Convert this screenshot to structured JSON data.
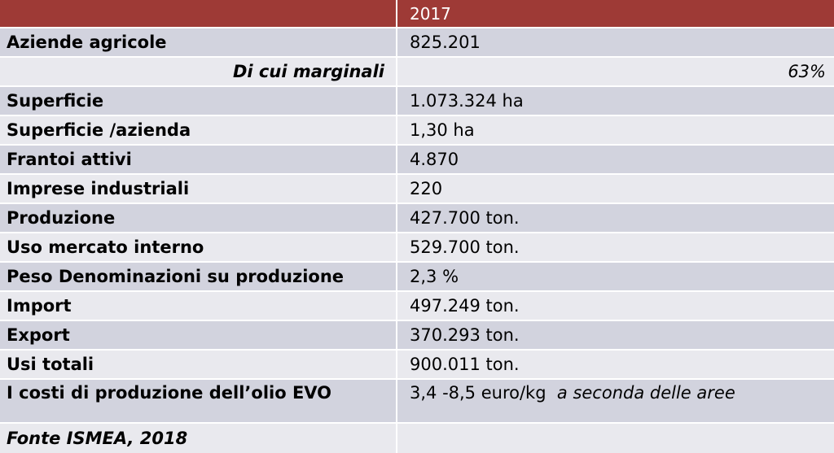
{
  "header": {
    "label": "",
    "year": "2017"
  },
  "rows": [
    {
      "label": "Aziende agricole",
      "value": "825.201"
    },
    {
      "label": "Di cui marginali",
      "value": "63%"
    },
    {
      "label": "Superficie",
      "value": "1.073.324 ha"
    },
    {
      "label": "Superficie /azienda",
      "value": "1,30 ha"
    },
    {
      "label": "Frantoi attivi",
      "value": "4.870"
    },
    {
      "label": "Imprese industriali",
      "value": "220"
    },
    {
      "label": "Produzione",
      "value": "427.700 ton."
    },
    {
      "label": "Uso mercato interno",
      "value": "529.700 ton."
    },
    {
      "label": "Peso Denominazioni su produzione",
      "value": "2,3 %"
    },
    {
      "label": "Import",
      "value": "497.249 ton."
    },
    {
      "label": "Export",
      "value": "370.293  ton."
    },
    {
      "label": "Usi totali",
      "value": "900.011 ton."
    },
    {
      "label": "I costi di produzione dell’olio EVO",
      "value": "3,4 -8,5 euro/kg",
      "note": "a seconda delle aree"
    }
  ],
  "source": "Fonte ISMEA, 2018",
  "colors": {
    "header_bg": "#9e3a36",
    "row_light": "#e9e9ee",
    "row_dark": "#d2d3de"
  }
}
